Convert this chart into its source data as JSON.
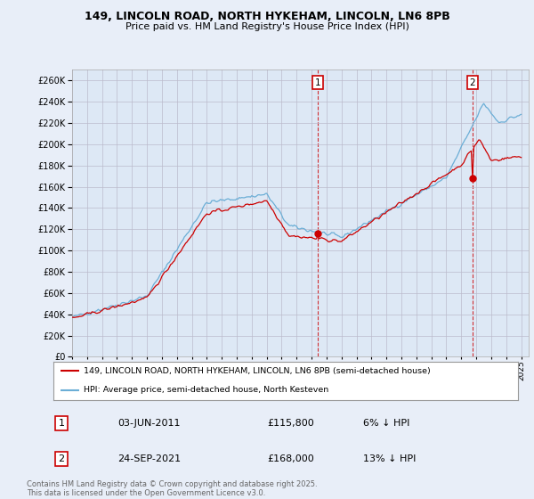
{
  "title_line1": "149, LINCOLN ROAD, NORTH HYKEHAM, LINCOLN, LN6 8PB",
  "title_line2": "Price paid vs. HM Land Registry's House Price Index (HPI)",
  "background_color": "#e8eef8",
  "plot_background": "#dde8f5",
  "ylabel_ticks": [
    "£0",
    "£20K",
    "£40K",
    "£60K",
    "£80K",
    "£100K",
    "£120K",
    "£140K",
    "£160K",
    "£180K",
    "£200K",
    "£220K",
    "£240K",
    "£260K"
  ],
  "ytick_vals": [
    0,
    20000,
    40000,
    60000,
    80000,
    100000,
    120000,
    140000,
    160000,
    180000,
    200000,
    220000,
    240000,
    260000
  ],
  "ylim": [
    0,
    270000
  ],
  "xlim_start": 1995.0,
  "xlim_end": 2025.5,
  "xtick_years": [
    1995,
    1996,
    1997,
    1998,
    1999,
    2000,
    2001,
    2002,
    2003,
    2004,
    2005,
    2006,
    2007,
    2008,
    2009,
    2010,
    2011,
    2012,
    2013,
    2014,
    2015,
    2016,
    2017,
    2018,
    2019,
    2020,
    2021,
    2022,
    2023,
    2024,
    2025
  ],
  "hpi_color": "#6baed6",
  "price_color": "#cc0000",
  "marker1_year": 2011.42,
  "marker1_price": 115800,
  "marker2_year": 2021.73,
  "marker2_price": 168000,
  "annotation1_label": "1",
  "annotation2_label": "2",
  "legend_price_label": "149, LINCOLN ROAD, NORTH HYKEHAM, LINCOLN, LN6 8PB (semi-detached house)",
  "legend_hpi_label": "HPI: Average price, semi-detached house, North Kesteven",
  "table_row1": [
    "1",
    "03-JUN-2011",
    "£115,800",
    "6% ↓ HPI"
  ],
  "table_row2": [
    "2",
    "24-SEP-2021",
    "£168,000",
    "13% ↓ HPI"
  ],
  "footer": "Contains HM Land Registry data © Crown copyright and database right 2025.\nThis data is licensed under the Open Government Licence v3.0.",
  "vline_color": "#cc0000",
  "grid_color": "#bbbbcc",
  "legend_border": "#999999"
}
